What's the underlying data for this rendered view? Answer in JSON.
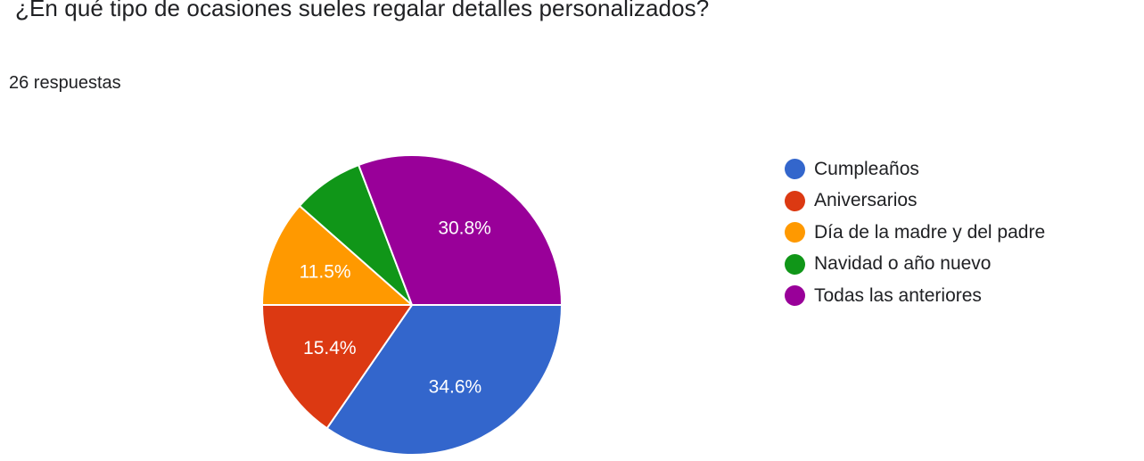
{
  "question": {
    "title": "¿En qué tipo de ocasiones sueles regalar detalles personalizados?",
    "response_count": "26 respuestas"
  },
  "chart_data": {
    "type": "pie",
    "legend_position": "right",
    "slices": [
      {
        "label": "Cumpleaños",
        "value": 34.6,
        "value_label": "34.6%",
        "color": "#3366cc"
      },
      {
        "label": "Aniversarios",
        "value": 15.4,
        "value_label": "15.4%",
        "color": "#dc3912"
      },
      {
        "label": "Día de la madre y del padre",
        "value": 11.5,
        "value_label": "11.5%",
        "color": "#ff9900"
      },
      {
        "label": "Navidad o año nuevo",
        "value": 7.7,
        "value_label": "",
        "color": "#109618"
      },
      {
        "label": "Todas las anteriores",
        "value": 30.8,
        "value_label": "30.8%",
        "color": "#990099"
      }
    ]
  }
}
